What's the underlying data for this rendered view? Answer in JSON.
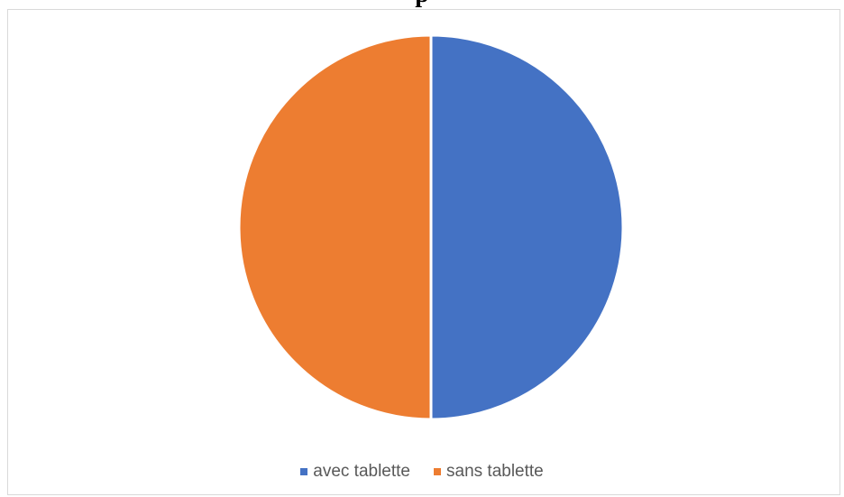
{
  "chart_data": {
    "type": "pie",
    "title": "p",
    "categories": [
      "avec tablette",
      "sans tablette"
    ],
    "values": [
      50,
      50
    ],
    "colors": [
      "#4472C4",
      "#ED7D31"
    ],
    "legend_position": "bottom"
  },
  "legend": {
    "items": [
      {
        "label": "avec tablette",
        "color": "#4472C4"
      },
      {
        "label": "sans tablette",
        "color": "#ED7D31"
      }
    ]
  }
}
